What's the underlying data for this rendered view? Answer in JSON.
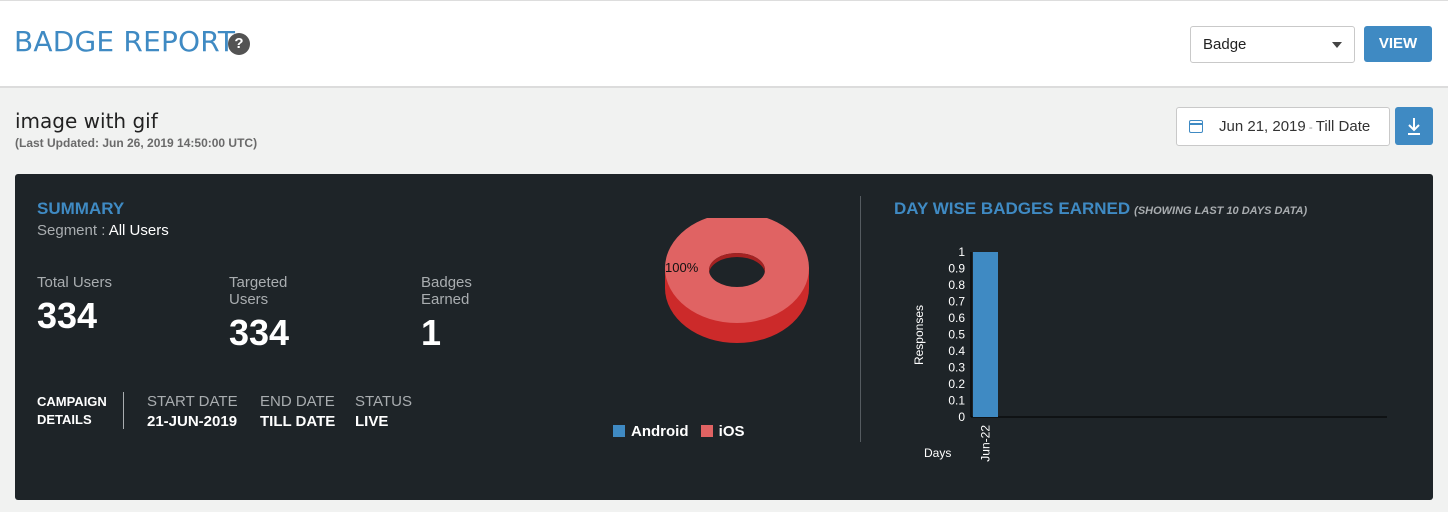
{
  "header": {
    "title": "BADGE REPORT",
    "help_icon": "?",
    "select_value": "Badge",
    "view_label": "VIEW"
  },
  "campaign": {
    "name": "image with gif",
    "last_updated": "(Last Updated: Jun 26, 2019 14:50:00 UTC)",
    "date_start": "Jun 21, 2019",
    "date_sep": "-",
    "date_end": "Till Date"
  },
  "summary": {
    "title": "SUMMARY",
    "segment_label": "Segment :",
    "segment_value": "All Users",
    "stats": [
      {
        "label": "Total Users",
        "value": "334"
      },
      {
        "label": "Targeted Users",
        "value": "334"
      },
      {
        "label": "Badges Earned",
        "value": "1"
      }
    ],
    "details_title": "CAMPAIGN DETAILS",
    "details": [
      {
        "label": "START DATE",
        "value": "21-JUN-2019"
      },
      {
        "label": "END DATE",
        "value": "TILL DATE"
      },
      {
        "label": "STATUS",
        "value": "LIVE"
      }
    ]
  },
  "colors": {
    "accent": "#3f8ac3",
    "android": "#3f8ac3",
    "ios": "#e06363",
    "ios_dark": "#cc2a2a"
  },
  "chart_data": [
    {
      "type": "pie",
      "categories": [
        "Android",
        "iOS"
      ],
      "values": [
        0,
        100
      ],
      "data_label": "100%",
      "legend": [
        "Android",
        "iOS"
      ],
      "legend_position": "bottom"
    },
    {
      "type": "bar",
      "title": "DAY WISE BADGES EARNED",
      "subtitle": "(SHOWING LAST 10 DAYS DATA)",
      "categories": [
        "Jun-22"
      ],
      "values": [
        1
      ],
      "xlabel": "Days",
      "ylabel": "Responses",
      "ylim": [
        0,
        1
      ],
      "yticks": [
        "1",
        "0.9",
        "0.8",
        "0.7",
        "0.6",
        "0.5",
        "0.4",
        "0.3",
        "0.2",
        "0.1",
        "0"
      ]
    }
  ]
}
